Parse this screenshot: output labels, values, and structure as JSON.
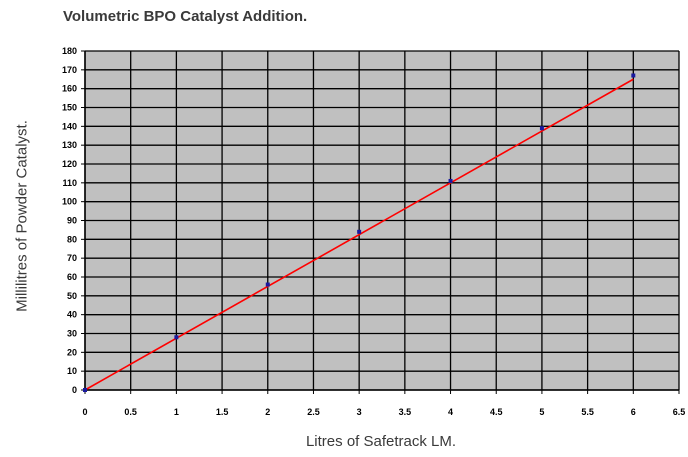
{
  "chart_data": {
    "type": "scatter",
    "title": "Volumetric BPO Catalyst Addition.",
    "xlabel": "Litres of Safetrack LM.",
    "ylabel": "Millilitres of Powder Catalyst.",
    "xlim": [
      0,
      6.5
    ],
    "ylim": [
      0,
      180
    ],
    "x_ticks": [
      "0",
      "0.5",
      "1",
      "1.5",
      "2",
      "2.5",
      "3",
      "3.5",
      "4",
      "4.5",
      "5",
      "5.5",
      "6",
      "6.5"
    ],
    "y_ticks": [
      "0",
      "10",
      "20",
      "30",
      "40",
      "50",
      "60",
      "70",
      "80",
      "90",
      "100",
      "110",
      "120",
      "130",
      "140",
      "150",
      "160",
      "170",
      "180"
    ],
    "grid": true,
    "series": [
      {
        "x": [
          0,
          1,
          2,
          3,
          4,
          5,
          6
        ],
        "y": [
          0,
          28,
          56,
          84,
          111,
          139,
          167
        ],
        "marker_color": "#1a1aa0"
      }
    ],
    "trendline": {
      "x": [
        0,
        6
      ],
      "y": [
        0,
        165
      ],
      "color": "#ff0000"
    },
    "plot_background": "#c0c0c0"
  }
}
